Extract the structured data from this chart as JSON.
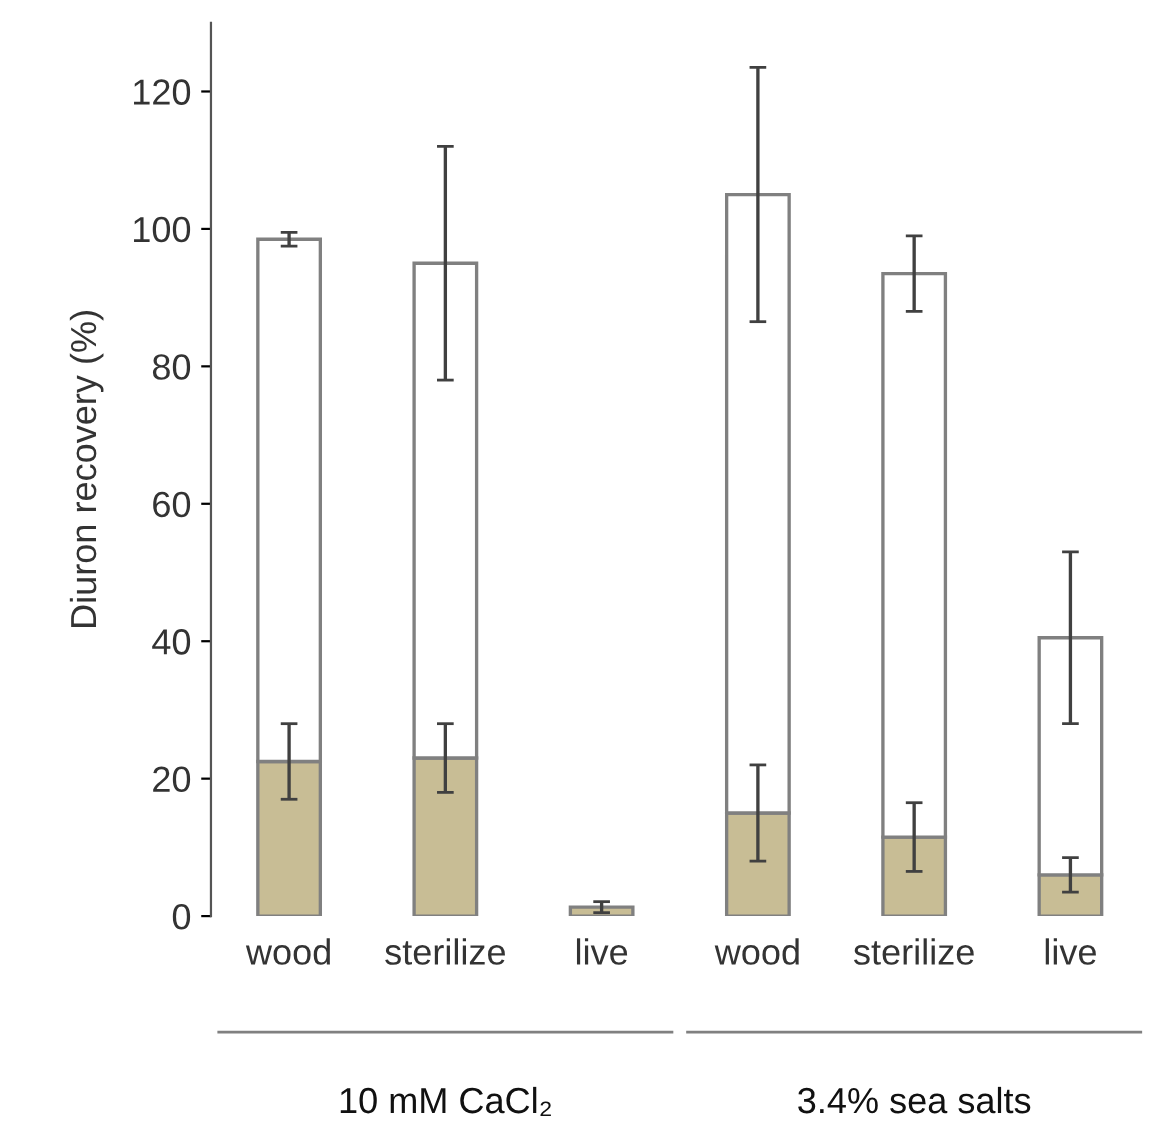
{
  "chart_data": {
    "type": "bar",
    "stacked": true,
    "ylabel": "Diuron recovery (%)",
    "categories": [
      "wood",
      "sterilize",
      "live",
      "wood",
      "sterilize",
      "live"
    ],
    "series": [
      {
        "color": "#c8bd95",
        "values": [
          22.5,
          23,
          1.3,
          15,
          11.5,
          6
        ],
        "errors": [
          5.5,
          5,
          0.8,
          7,
          5,
          2.5
        ]
      },
      {
        "color": "#ffffff",
        "values": [
          76,
          72,
          null,
          90,
          82,
          34.5
        ],
        "errors": [
          1,
          17,
          null,
          18.5,
          5.5,
          12.5
        ]
      }
    ],
    "ylim": [
      0,
      130
    ],
    "yticks": [
      0,
      20,
      40,
      60,
      80,
      100,
      120
    ],
    "grid": false,
    "legend": false,
    "annotations": [
      "10 mM CaCl₂",
      "3.4% sea salts"
    ]
  }
}
